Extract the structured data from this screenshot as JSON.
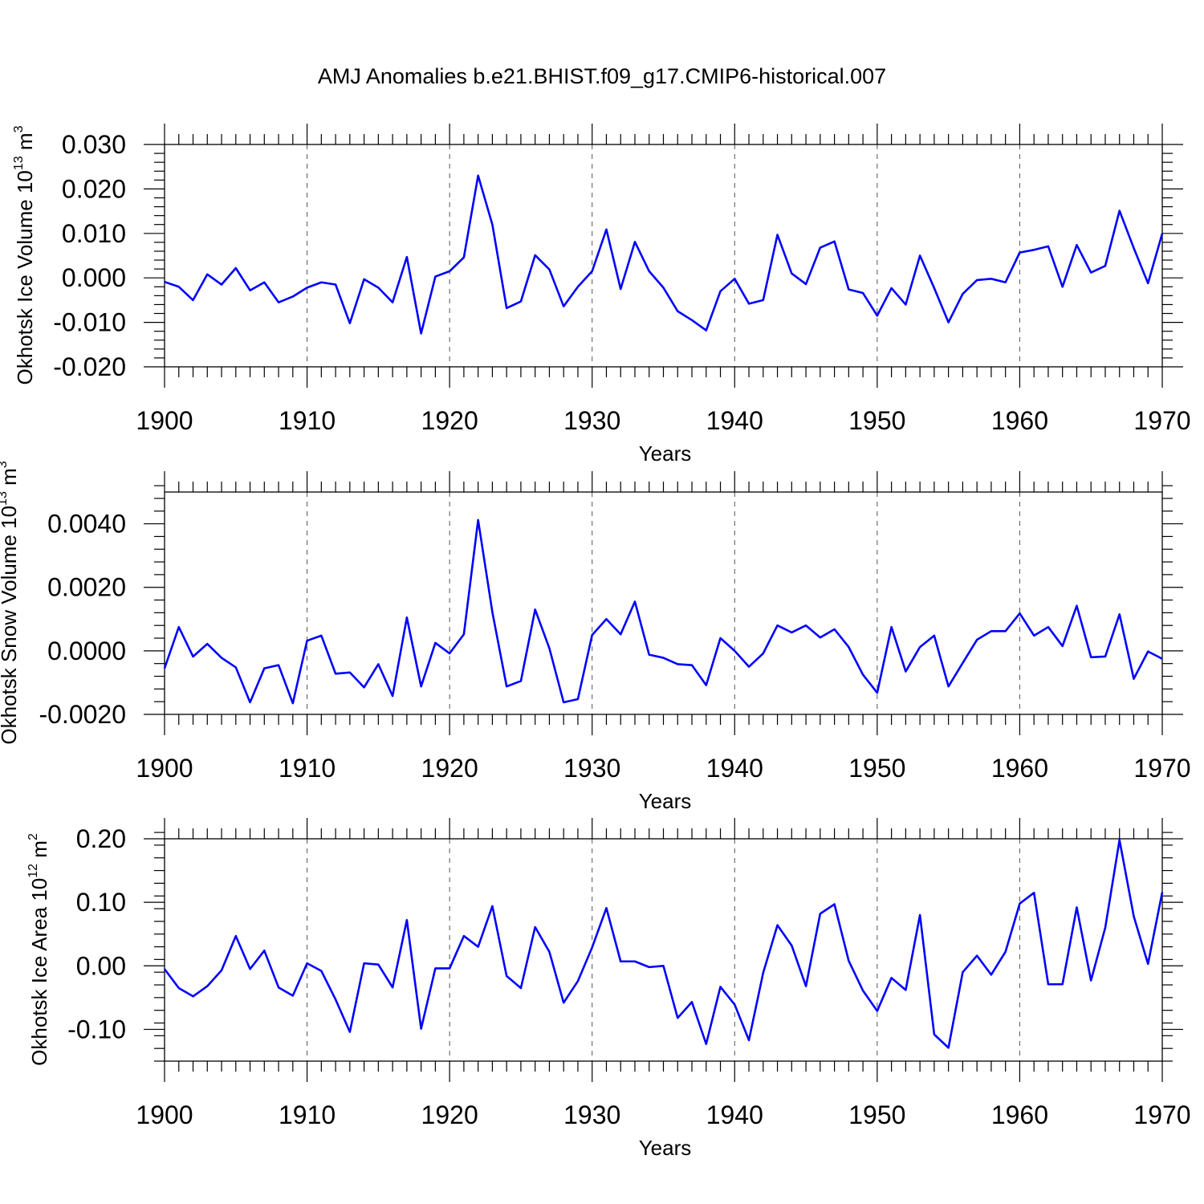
{
  "title": "AMJ Anomalies b.e21.BHIST.f09_g17.CMIP6-historical.007",
  "series_color": "#0000ff",
  "chart_data": [
    {
      "type": "line",
      "ylabel_main": "Okhotsk Ice Volume 10",
      "ylabel_exp": "13",
      "ylabel_unit": " m",
      "ylabel_unit_exp": "3",
      "xlabel": "Years",
      "xlim": [
        1900,
        1970
      ],
      "ylim": [
        -0.02,
        0.03
      ],
      "xticks": [
        1900,
        1910,
        1920,
        1930,
        1940,
        1950,
        1960,
        1970
      ],
      "xtick_labels": [
        "1900",
        "1910",
        "1920",
        "1930",
        "1940",
        "1950",
        "1960",
        "1970"
      ],
      "yticks": [
        -0.02,
        -0.01,
        0.0,
        0.01,
        0.02,
        0.03
      ],
      "ytick_labels": [
        "-0.020",
        "-0.010",
        "0.000",
        "0.010",
        "0.020",
        "0.030"
      ],
      "y_minor_step": 0.002,
      "grid": "vertical dashed at decades",
      "x": [
        1900,
        1901,
        1902,
        1903,
        1904,
        1905,
        1906,
        1907,
        1908,
        1909,
        1910,
        1911,
        1912,
        1913,
        1914,
        1915,
        1916,
        1917,
        1918,
        1919,
        1920,
        1921,
        1922,
        1923,
        1924,
        1925,
        1926,
        1927,
        1928,
        1929,
        1930,
        1931,
        1932,
        1933,
        1934,
        1935,
        1936,
        1937,
        1938,
        1939,
        1940,
        1941,
        1942,
        1943,
        1944,
        1945,
        1946,
        1947,
        1948,
        1949,
        1950,
        1951,
        1952,
        1953,
        1954,
        1955,
        1956,
        1957,
        1958,
        1959,
        1960,
        1961,
        1962,
        1963,
        1964,
        1965,
        1966,
        1967,
        1968,
        1969,
        1970
      ],
      "values": [
        -0.0009,
        -0.002,
        -0.005,
        0.0008,
        -0.0015,
        0.0022,
        -0.0028,
        -0.001,
        -0.0055,
        -0.0042,
        -0.0022,
        -0.001,
        -0.0015,
        -0.0102,
        -0.0003,
        -0.0022,
        -0.0055,
        0.0047,
        -0.0125,
        0.0003,
        0.0015,
        0.0046,
        0.023,
        0.012,
        -0.0068,
        -0.0053,
        0.0051,
        0.0019,
        -0.0064,
        -0.002,
        0.0015,
        0.0109,
        -0.0025,
        0.0081,
        0.0015,
        -0.0022,
        -0.0075,
        -0.0095,
        -0.0118,
        -0.003,
        -0.0002,
        -0.0058,
        -0.005,
        0.0097,
        0.001,
        -0.0014,
        0.0068,
        0.0082,
        -0.0026,
        -0.0034,
        -0.0085,
        -0.0023,
        -0.006,
        0.005,
        -0.0023,
        -0.01,
        -0.0036,
        -0.0005,
        -0.0002,
        -0.001,
        0.0057,
        0.0063,
        0.0071,
        -0.002,
        0.0074,
        0.0012,
        0.0027,
        0.0151,
        0.0067,
        -0.0012,
        0.01
      ]
    },
    {
      "type": "line",
      "ylabel_main": "Okhotsk Snow Volume 10",
      "ylabel_exp": "13",
      "ylabel_unit": " m",
      "ylabel_unit_exp": "3",
      "xlabel": "Years",
      "xlim": [
        1900,
        1970
      ],
      "ylim": [
        -0.002,
        0.005
      ],
      "xticks": [
        1900,
        1910,
        1920,
        1930,
        1940,
        1950,
        1960,
        1970
      ],
      "xtick_labels": [
        "1900",
        "1910",
        "1920",
        "1930",
        "1940",
        "1950",
        "1960",
        "1970"
      ],
      "yticks": [
        -0.002,
        0.0,
        0.002,
        0.004
      ],
      "ytick_labels": [
        "-0.0020",
        "0.0000",
        "0.0020",
        "0.0040"
      ],
      "y_minor_step": 0.0004,
      "grid": "vertical dashed at decades",
      "x": [
        1900,
        1901,
        1902,
        1903,
        1904,
        1905,
        1906,
        1907,
        1908,
        1909,
        1910,
        1911,
        1912,
        1913,
        1914,
        1915,
        1916,
        1917,
        1918,
        1919,
        1920,
        1921,
        1922,
        1923,
        1924,
        1925,
        1926,
        1927,
        1928,
        1929,
        1930,
        1931,
        1932,
        1933,
        1934,
        1935,
        1936,
        1937,
        1938,
        1939,
        1940,
        1941,
        1942,
        1943,
        1944,
        1945,
        1946,
        1947,
        1948,
        1949,
        1950,
        1951,
        1952,
        1953,
        1954,
        1955,
        1956,
        1957,
        1958,
        1959,
        1960,
        1961,
        1962,
        1963,
        1964,
        1965,
        1966,
        1967,
        1968,
        1969,
        1970
      ],
      "values": [
        -0.00055,
        0.00075,
        -0.00018,
        0.00022,
        -0.00022,
        -0.00052,
        -0.00162,
        -0.00055,
        -0.00045,
        -0.00165,
        0.00032,
        0.00048,
        -0.00072,
        -0.00068,
        -0.00115,
        -0.00042,
        -0.00142,
        0.00105,
        -0.00112,
        0.00025,
        -8e-05,
        0.00052,
        0.00412,
        0.00122,
        -0.00112,
        -0.00095,
        0.0013,
        8e-05,
        -0.00162,
        -0.00152,
        0.0005,
        0.001,
        0.00052,
        0.00155,
        -0.00012,
        -0.00022,
        -0.00042,
        -0.00045,
        -0.00108,
        0.0004,
        0.0,
        -0.0005,
        -8e-05,
        0.0008,
        0.00058,
        0.0008,
        0.00042,
        0.00068,
        0.00012,
        -0.00075,
        -0.00132,
        0.00075,
        -0.00065,
        0.00012,
        0.00048,
        -0.00112,
        -0.00038,
        0.00035,
        0.00062,
        0.00062,
        0.00118,
        0.00048,
        0.00075,
        0.00015,
        0.00142,
        -0.0002,
        -0.00018,
        0.00115,
        -0.00088,
        -2e-05,
        -0.00025
      ]
    },
    {
      "type": "line",
      "ylabel_main": "Okhotsk Ice Area 10",
      "ylabel_exp": "12",
      "ylabel_unit": " m",
      "ylabel_unit_exp": "2",
      "xlabel": "Years",
      "xlim": [
        1900,
        1970
      ],
      "ylim": [
        -0.15,
        0.2
      ],
      "xticks": [
        1900,
        1910,
        1920,
        1930,
        1940,
        1950,
        1960,
        1970
      ],
      "xtick_labels": [
        "1900",
        "1910",
        "1920",
        "1930",
        "1940",
        "1950",
        "1960",
        "1970"
      ],
      "yticks": [
        -0.1,
        0.0,
        0.1,
        0.2
      ],
      "ytick_labels": [
        "-0.10",
        "0.00",
        "0.10",
        "0.20"
      ],
      "y_minor_step": 0.02,
      "grid": "vertical dashed at decades",
      "x": [
        1900,
        1901,
        1902,
        1903,
        1904,
        1905,
        1906,
        1907,
        1908,
        1909,
        1910,
        1911,
        1912,
        1913,
        1914,
        1915,
        1916,
        1917,
        1918,
        1919,
        1920,
        1921,
        1922,
        1923,
        1924,
        1925,
        1926,
        1927,
        1928,
        1929,
        1930,
        1931,
        1932,
        1933,
        1934,
        1935,
        1936,
        1937,
        1938,
        1939,
        1940,
        1941,
        1942,
        1943,
        1944,
        1945,
        1946,
        1947,
        1948,
        1949,
        1950,
        1951,
        1952,
        1953,
        1954,
        1955,
        1956,
        1957,
        1958,
        1959,
        1960,
        1961,
        1962,
        1963,
        1964,
        1965,
        1966,
        1967,
        1968,
        1969,
        1970
      ],
      "values": [
        -0.005,
        -0.035,
        -0.048,
        -0.032,
        -0.007,
        0.047,
        -0.005,
        0.024,
        -0.034,
        -0.047,
        0.004,
        -0.008,
        -0.053,
        -0.104,
        0.004,
        0.002,
        -0.034,
        0.072,
        -0.099,
        -0.004,
        -0.004,
        0.047,
        0.03,
        0.094,
        -0.016,
        -0.035,
        0.061,
        0.022,
        -0.058,
        -0.024,
        0.029,
        0.091,
        0.007,
        0.007,
        -0.002,
        0.0,
        -0.082,
        -0.057,
        -0.123,
        -0.033,
        -0.061,
        -0.117,
        -0.011,
        0.064,
        0.032,
        -0.032,
        0.082,
        0.097,
        0.008,
        -0.039,
        -0.071,
        -0.019,
        -0.038,
        0.08,
        -0.108,
        -0.129,
        -0.01,
        0.016,
        -0.014,
        0.022,
        0.098,
        0.115,
        -0.029,
        -0.029,
        0.092,
        -0.023,
        0.06,
        0.198,
        0.078,
        0.003,
        0.116
      ]
    }
  ]
}
